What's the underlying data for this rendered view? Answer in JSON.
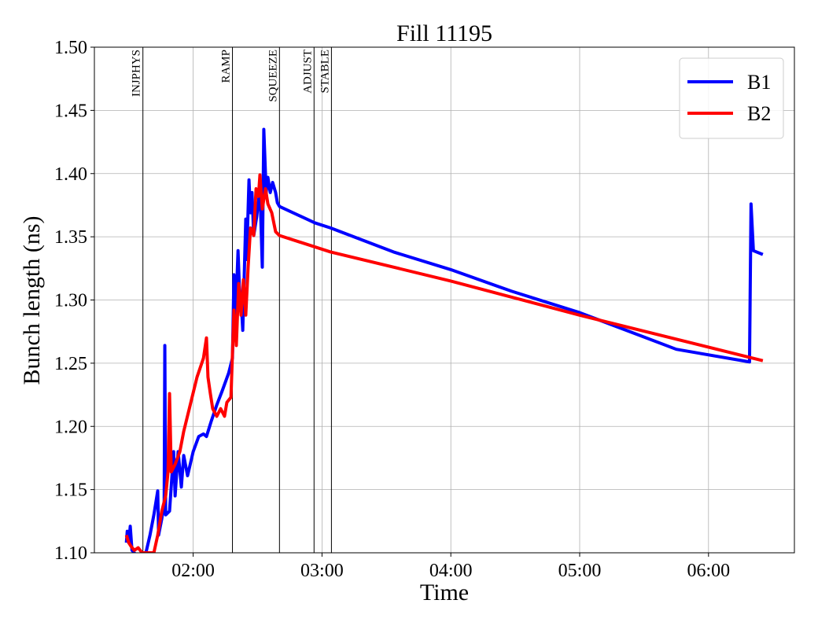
{
  "chart_data": {
    "type": "line",
    "title": "Fill 11195",
    "xlabel": "Time",
    "ylabel": "Bunch length (ns)",
    "xlim": [
      74,
      400
    ],
    "xticks": [
      {
        "value": 120,
        "label": "02:00"
      },
      {
        "value": 180,
        "label": "03:00"
      },
      {
        "value": 240,
        "label": "04:00"
      },
      {
        "value": 300,
        "label": "05:00"
      },
      {
        "value": 360,
        "label": "06:00"
      }
    ],
    "ylim": [
      1.1,
      1.5
    ],
    "yticks": [
      {
        "value": 1.1,
        "label": "1.10"
      },
      1.15,
      {
        "value": 1.2,
        "label": "1.20"
      },
      1.25,
      {
        "value": 1.3,
        "label": "1.30"
      },
      1.35,
      {
        "value": 1.4,
        "label": "1.40"
      },
      1.45,
      {
        "value": 1.5,
        "label": "1.50"
      }
    ],
    "grid": true,
    "legend": "upper right",
    "events": [
      {
        "label": "INJPHYS",
        "x": 96.6
      },
      {
        "label": "RAMP",
        "x": 138.3
      },
      {
        "label": "SQUEEZE",
        "x": 160.2
      },
      {
        "label": "ADJUST",
        "x": 176.3
      },
      {
        "label": "STABLE",
        "x": 184.4
      }
    ],
    "series": [
      {
        "name": "B1",
        "color": "#0000ff",
        "x": [
          88.9,
          89.3,
          90.0,
          90.7,
          91.5,
          92.6,
          96.9,
          98.0,
          99.9,
          101.7,
          103.5,
          103.9,
          105.4,
          106.5,
          106.8,
          107.2,
          109.0,
          110.9,
          111.6,
          113.0,
          114.5,
          115.6,
          117.4,
          120.0,
          122.6,
          124.8,
          126.2,
          128.4,
          131.0,
          133.5,
          136.5,
          138.3,
          139.0,
          139.8,
          140.9,
          141.6,
          142.3,
          143.1,
          143.8,
          144.5,
          144.9,
          146.0,
          146.7,
          147.4,
          148.2,
          149.6,
          151.1,
          152.2,
          152.9,
          154.0,
          154.8,
          155.9,
          157.0,
          158.4,
          159.2,
          160.2,
          176.7,
          184.0,
          213.3,
          240.0,
          268.2,
          300.0,
          345.0,
          379.1,
          379.8,
          380.9,
          385.3
        ],
        "values": [
          1.108,
          1.117,
          1.108,
          1.121,
          1.102,
          1.1,
          1.09,
          1.1,
          1.114,
          1.13,
          1.149,
          1.114,
          1.127,
          1.139,
          1.264,
          1.13,
          1.133,
          1.18,
          1.145,
          1.18,
          1.152,
          1.177,
          1.161,
          1.18,
          1.192,
          1.194,
          1.192,
          1.204,
          1.217,
          1.228,
          1.242,
          1.254,
          1.32,
          1.288,
          1.339,
          1.307,
          1.301,
          1.276,
          1.32,
          1.364,
          1.332,
          1.395,
          1.369,
          1.385,
          1.351,
          1.366,
          1.388,
          1.326,
          1.435,
          1.385,
          1.397,
          1.385,
          1.393,
          1.385,
          1.377,
          1.374,
          1.361,
          1.357,
          1.338,
          1.324,
          1.307,
          1.29,
          1.261,
          1.251,
          1.376,
          1.339,
          1.336
        ]
      },
      {
        "name": "B2",
        "color": "#ff0000",
        "x": [
          88.9,
          90.0,
          91.1,
          92.6,
          94.4,
          96.2,
          101.7,
          103.5,
          105.4,
          107.2,
          108.3,
          109.0,
          109.8,
          111.6,
          113.8,
          115.6,
          118.2,
          121.8,
          124.8,
          126.2,
          126.9,
          128.0,
          129.1,
          131.0,
          132.8,
          134.6,
          135.7,
          137.6,
          139.0,
          140.1,
          141.2,
          142.3,
          143.4,
          144.5,
          145.6,
          146.7,
          148.2,
          149.3,
          150.4,
          151.1,
          152.2,
          153.7,
          154.8,
          156.6,
          158.4,
          160.2,
          184.0,
          240.0,
          300.0,
          385.3
        ],
        "values": [
          1.114,
          1.108,
          1.105,
          1.102,
          1.104,
          1.1,
          1.1,
          1.114,
          1.133,
          1.145,
          1.164,
          1.226,
          1.164,
          1.17,
          1.18,
          1.196,
          1.214,
          1.239,
          1.254,
          1.27,
          1.239,
          1.226,
          1.214,
          1.208,
          1.214,
          1.208,
          1.219,
          1.223,
          1.292,
          1.264,
          1.313,
          1.288,
          1.316,
          1.288,
          1.326,
          1.357,
          1.351,
          1.388,
          1.382,
          1.399,
          1.372,
          1.388,
          1.376,
          1.369,
          1.354,
          1.351,
          1.338,
          1.315,
          1.288,
          1.252
        ]
      }
    ]
  }
}
